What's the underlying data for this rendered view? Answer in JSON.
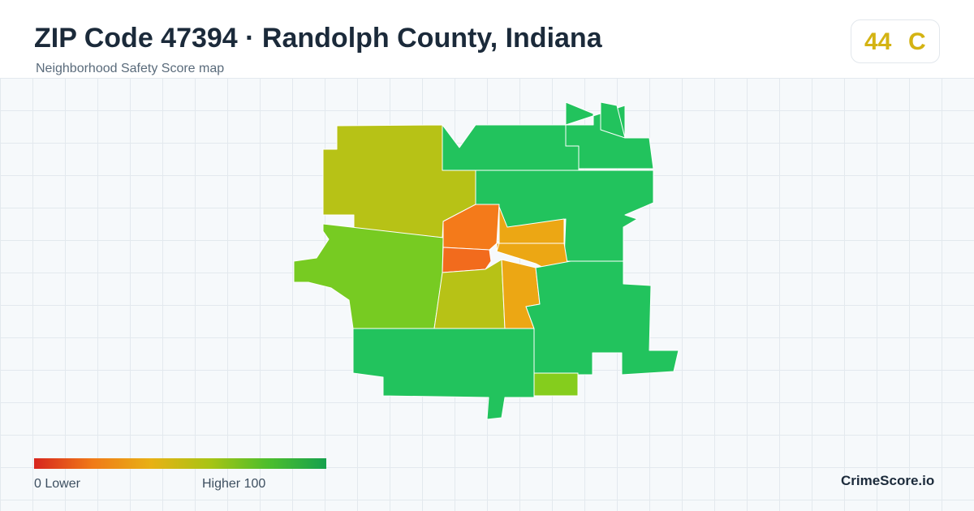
{
  "header": {
    "title": "ZIP Code 47394 · Randolph County, Indiana",
    "subtitle": "Neighborhood Safety Score map"
  },
  "score": {
    "value": "44",
    "grade": "C",
    "color": "#d4b312"
  },
  "map": {
    "regions": [
      {
        "name": "northwest",
        "color": "#b7c216"
      },
      {
        "name": "north",
        "color": "#22c35d"
      },
      {
        "name": "north-east-upper",
        "color": "#22c35d"
      },
      {
        "name": "north-east-arm",
        "color": "#22c35d"
      },
      {
        "name": "east-north",
        "color": "#22c35d"
      },
      {
        "name": "west",
        "color": "#77cb22"
      },
      {
        "name": "center-north",
        "color": "#f47a1a"
      },
      {
        "name": "center-west",
        "color": "#f26b1d"
      },
      {
        "name": "center-east",
        "color": "#eca714"
      },
      {
        "name": "center-south",
        "color": "#b7c216"
      },
      {
        "name": "center-southeast",
        "color": "#eca714"
      },
      {
        "name": "east-upper",
        "color": "#eca714"
      },
      {
        "name": "southeast",
        "color": "#22c35d"
      },
      {
        "name": "south",
        "color": "#22c35d"
      },
      {
        "name": "south-small",
        "color": "#85cd1d"
      }
    ]
  },
  "legend": {
    "low_label": "0  Lower",
    "high_label": "Higher  100",
    "colors": [
      "#d7261e",
      "#f07a18",
      "#e8b115",
      "#a9c414",
      "#4dbe2c",
      "#16a14d"
    ]
  },
  "brand": "CrimeScore.io"
}
